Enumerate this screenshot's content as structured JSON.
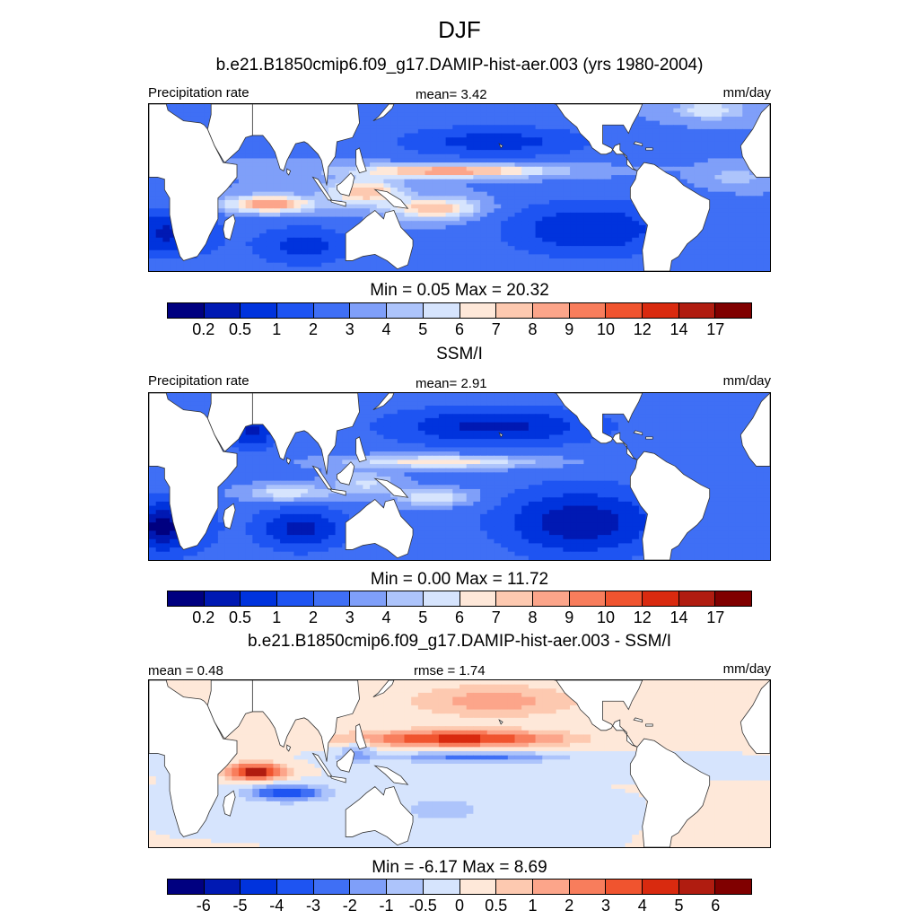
{
  "title": "DJF",
  "colors": {
    "palette": [
      "#000080",
      "#0019b3",
      "#0033dd",
      "#1e54f2",
      "#3f6ff5",
      "#7f9ff9",
      "#adc4fb",
      "#d6e4fd",
      "#fee8d9",
      "#fdc9b0",
      "#fca58a",
      "#f87d5c",
      "#f0542f",
      "#d92a0f",
      "#b01c10",
      "#800000"
    ],
    "land": "#ffffff",
    "coast": "#333333"
  },
  "panels": [
    {
      "title": "b.e21.B1850cmip6.f09_g17.DAMIP-hist-aer.003 (yrs 1980-2004)",
      "left_label": "Precipitation rate",
      "center_label": "mean=   3.42",
      "right_label": "mm/day",
      "colorbar_title": "Min =   0.05 Max =  20.32",
      "colorbar_ticks": [
        "0.2",
        "0.5",
        "1",
        "2",
        "3",
        "4",
        "5",
        "6",
        "7",
        "8",
        "9",
        "10",
        "12",
        "14",
        "17"
      ]
    },
    {
      "title": "SSM/I",
      "left_label": "Precipitation rate",
      "center_label": "mean=   2.91",
      "right_label": "mm/day",
      "colorbar_title": "Min =   0.00 Max =  11.72",
      "colorbar_ticks": [
        "0.2",
        "0.5",
        "1",
        "2",
        "3",
        "4",
        "5",
        "6",
        "7",
        "8",
        "9",
        "10",
        "12",
        "14",
        "17"
      ]
    },
    {
      "title": "b.e21.B1850cmip6.f09_g17.DAMIP-hist-aer.003 - SSM/I",
      "left_label": "mean =   0.48",
      "center_label": "rmse =   1.74",
      "right_label": "mm/day",
      "colorbar_title": "Min =  -6.17 Max =   8.69",
      "colorbar_ticks": [
        "-6",
        "-5",
        "-4",
        "-3",
        "-2",
        "-1",
        "-0.5",
        "0",
        "0.5",
        "1",
        "2",
        "3",
        "4",
        "5",
        "6"
      ]
    }
  ]
}
